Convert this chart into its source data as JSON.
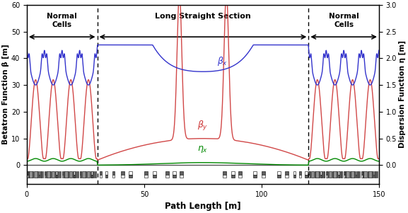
{
  "xlabel": "Path Length [m]",
  "ylabel_left": "Betatron Function β [m]",
  "ylabel_right": "Dispersion Function η [m]",
  "xlim": [
    0,
    150
  ],
  "ylim_left": [
    -7,
    60
  ],
  "ylim_right": [
    -0.35,
    3.0
  ],
  "dashed_lines": [
    30,
    120
  ],
  "color_bx": "#3333cc",
  "color_by": "#cc3333",
  "color_eta": "#008800",
  "arrow_color": "black",
  "zero_line_color": "#555555"
}
